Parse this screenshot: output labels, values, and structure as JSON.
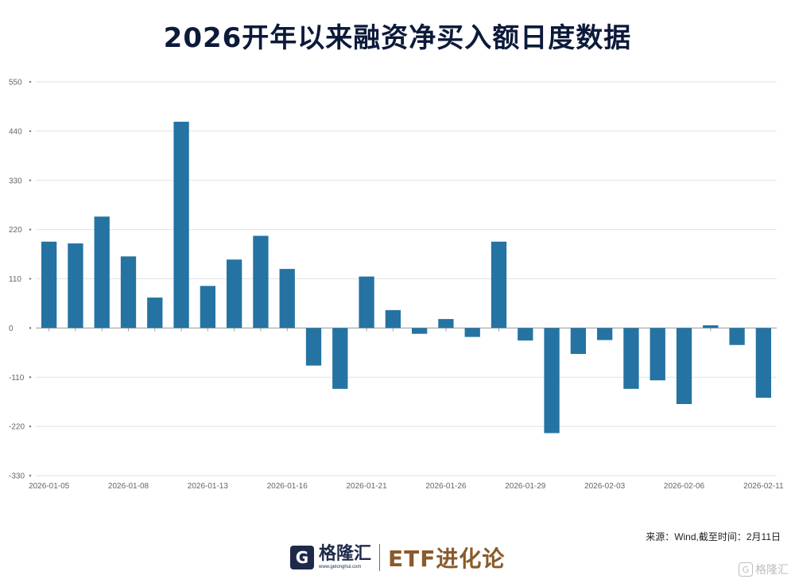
{
  "title": "2026开年以来融资净买入额日度数据",
  "source": "来源：Wind,截至时间：2月11日",
  "brand": {
    "logo_letter": "G",
    "name": "格隆汇",
    "url": "www.gelonghui.com",
    "etf": "ETF进化论"
  },
  "watermark": "格隆汇",
  "chart_data": {
    "type": "bar",
    "color": "#2573a2",
    "ylim": [
      -330,
      550
    ],
    "yticks": [
      550,
      440,
      330,
      220,
      110,
      0,
      -110,
      -220,
      -330
    ],
    "grid": true,
    "categories": [
      "2026-01-05",
      "2026-01-06",
      "2026-01-07",
      "2026-01-08",
      "2026-01-09",
      "2026-01-12",
      "2026-01-13",
      "2026-01-14",
      "2026-01-15",
      "2026-01-16",
      "2026-01-19",
      "2026-01-20",
      "2026-01-21",
      "2026-01-22",
      "2026-01-23",
      "2026-01-26",
      "2026-01-27",
      "2026-01-28",
      "2026-01-29",
      "2026-01-30",
      "2026-02-02",
      "2026-02-03",
      "2026-02-04",
      "2026-02-05",
      "2026-02-06",
      "2026-02-09",
      "2026-02-10",
      "2026-02-11"
    ],
    "xtick_labels": [
      "2026-01-05",
      "2026-01-08",
      "2026-01-13",
      "2026-01-16",
      "2026-01-21",
      "2026-01-26",
      "2026-01-29",
      "2026-02-03",
      "2026-02-06",
      "2026-02-11"
    ],
    "values": [
      193,
      189,
      249,
      160,
      68,
      461,
      94,
      153,
      206,
      132,
      -84,
      -136,
      115,
      40,
      -13,
      20,
      -20,
      193,
      -28,
      -235,
      -58,
      -27,
      -136,
      -117,
      -170,
      6,
      -38,
      -156
    ]
  }
}
